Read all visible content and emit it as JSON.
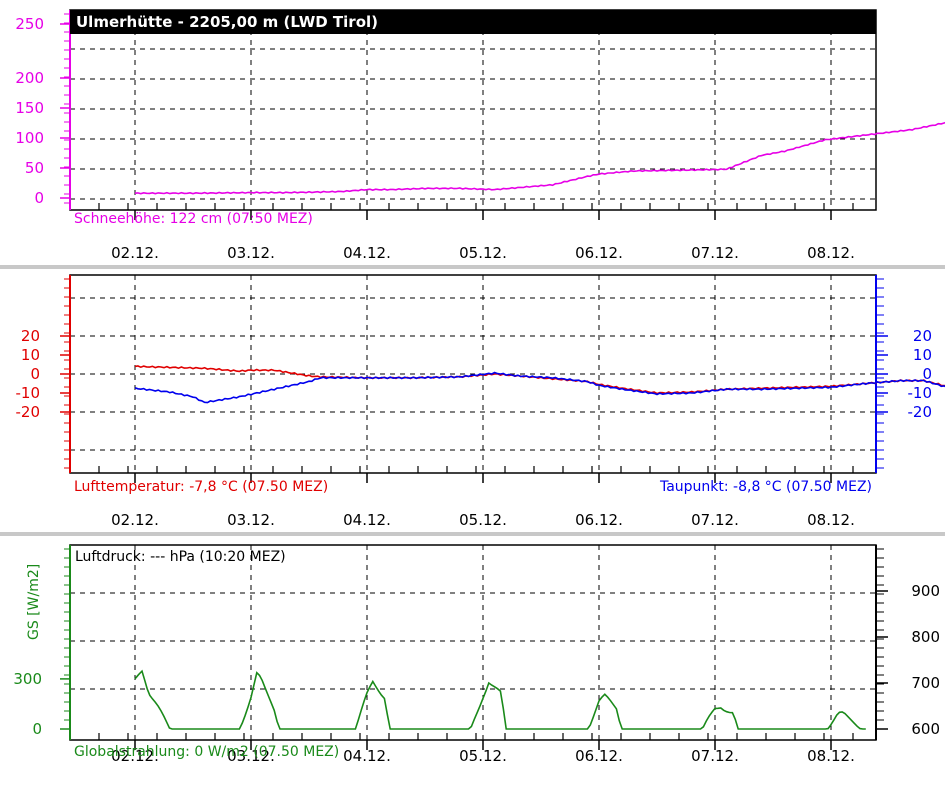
{
  "chart_data": [
    {
      "type": "line",
      "title": "Ulmerhütte - 2205,00 m (LWD Tirol)",
      "x_start": "02.12.",
      "x_ticks": [
        "02.12.",
        "03.12.",
        "04.12.",
        "05.12.",
        "06.12.",
        "07.12.",
        "08.12."
      ],
      "ylim": [
        0,
        250
      ],
      "y_ticks": [
        0,
        50,
        100,
        150,
        200,
        250
      ],
      "grid": true,
      "series": [
        {
          "name": "Schneehöhe",
          "color": "#e600e6",
          "label": "Schneehöhe: 122 cm (07:50 MEZ)",
          "x_days": [
            0,
            0.5,
            1.0,
            1.3,
            1.6,
            1.8,
            2.0,
            2.2,
            2.5,
            2.8,
            3.1,
            3.35,
            3.6,
            3.9,
            4.0,
            4.3,
            4.6,
            4.9,
            5.1,
            5.4,
            5.6,
            5.95,
            6.3,
            6.7,
            7.0,
            7.25
          ],
          "values": [
            8,
            8,
            9,
            9,
            10,
            11,
            14,
            14,
            16,
            16,
            14,
            18,
            22,
            36,
            40,
            45,
            46,
            47,
            48,
            71,
            78,
            97,
            105,
            114,
            126,
            122
          ]
        }
      ]
    },
    {
      "type": "line",
      "x_ticks": [
        "02.12.",
        "03.12.",
        "04.12.",
        "05.12.",
        "06.12.",
        "07.12.",
        "08.12."
      ],
      "ylim": [
        -25,
        25
      ],
      "y_ticks": [
        -20,
        -10,
        0,
        10,
        20
      ],
      "y2_ticks": [
        -20,
        -10,
        0,
        10,
        20
      ],
      "grid": true,
      "series": [
        {
          "name": "Lufttemperatur",
          "color": "#e00000",
          "label": "Lufttemperatur: -7,8 °C (07.50 MEZ)",
          "x_days": [
            0,
            0.3,
            0.6,
            0.9,
            1.0,
            1.2,
            1.5,
            1.6,
            2.0,
            2.4,
            2.8,
            3.1,
            3.3,
            3.6,
            3.9,
            4.0,
            4.2,
            4.5,
            4.8,
            5.1,
            5.4,
            5.7,
            6.0,
            6.3,
            6.6,
            6.8,
            7.0,
            7.25
          ],
          "values": [
            4,
            3.5,
            3,
            1.5,
            2,
            2,
            -1,
            -1.5,
            -2,
            -2,
            -1.5,
            0,
            -1,
            -2.5,
            -4,
            -5.5,
            -7.5,
            -10,
            -9.5,
            -8,
            -7.5,
            -7,
            -6.5,
            -5,
            -3.5,
            -3.5,
            -6.5,
            -7.8
          ]
        },
        {
          "name": "Taupunkt",
          "color": "#0000ee",
          "label": "Taupunkt: -8,8 °C (07.50 MEZ)",
          "x_days": [
            0,
            0.3,
            0.5,
            0.6,
            0.9,
            1.2,
            1.5,
            1.6,
            2.0,
            2.4,
            2.8,
            3.1,
            3.3,
            3.6,
            3.9,
            4.0,
            4.2,
            4.5,
            4.8,
            5.1,
            5.4,
            5.7,
            6.0,
            6.3,
            6.6,
            6.8,
            7.0,
            7.25
          ],
          "values": [
            -7.5,
            -9.5,
            -12,
            -15,
            -12,
            -8,
            -4,
            -2,
            -2,
            -2,
            -1.5,
            0.5,
            -1,
            -2,
            -4,
            -6,
            -8,
            -10.5,
            -10,
            -8,
            -8,
            -7.5,
            -7,
            -5,
            -3.5,
            -3.5,
            -7,
            -8.8
          ]
        }
      ]
    },
    {
      "type": "line",
      "x_ticks": [
        "02.12.",
        "03.12.",
        "04.12.",
        "05.12.",
        "06.12.",
        "07.12.",
        "08.12."
      ],
      "y_ticks": [
        0,
        300
      ],
      "ylabel": "GS [W/m2]",
      "y2_ticks": [
        600,
        700,
        800,
        900
      ],
      "grid": true,
      "series": [
        {
          "name": "Globalstrahlung",
          "color": "#1a8a1a",
          "label": "Globalstrahlung: 0 W/m2 (07.50 MEZ)",
          "x_days": [
            0,
            0.06,
            0.15,
            0.25,
            0.32,
            0.9,
            1.0,
            1.05,
            1.12,
            1.2,
            1.25,
            1.9,
            2.0,
            2.05,
            2.15,
            2.2,
            2.9,
            3.0,
            3.05,
            3.15,
            3.2,
            3.9,
            4.0,
            4.05,
            4.15,
            4.2,
            4.9,
            5.0,
            5.05,
            5.15,
            5.2,
            5.95,
            6.05,
            6.12,
            6.2,
            6.3
          ],
          "values": [
            300,
            330,
            180,
            60,
            0,
            0,
            200,
            330,
            250,
            120,
            0,
            0,
            200,
            280,
            200,
            0,
            0,
            200,
            290,
            210,
            0,
            0,
            160,
            190,
            130,
            0,
            0,
            120,
            140,
            100,
            0,
            0,
            80,
            90,
            40,
            0
          ]
        },
        {
          "name": "Luftdruck",
          "color": "#000000",
          "label": "Luftdruck:  --- hPa (10:20 MEZ)",
          "x_days": [],
          "values": []
        }
      ]
    }
  ]
}
